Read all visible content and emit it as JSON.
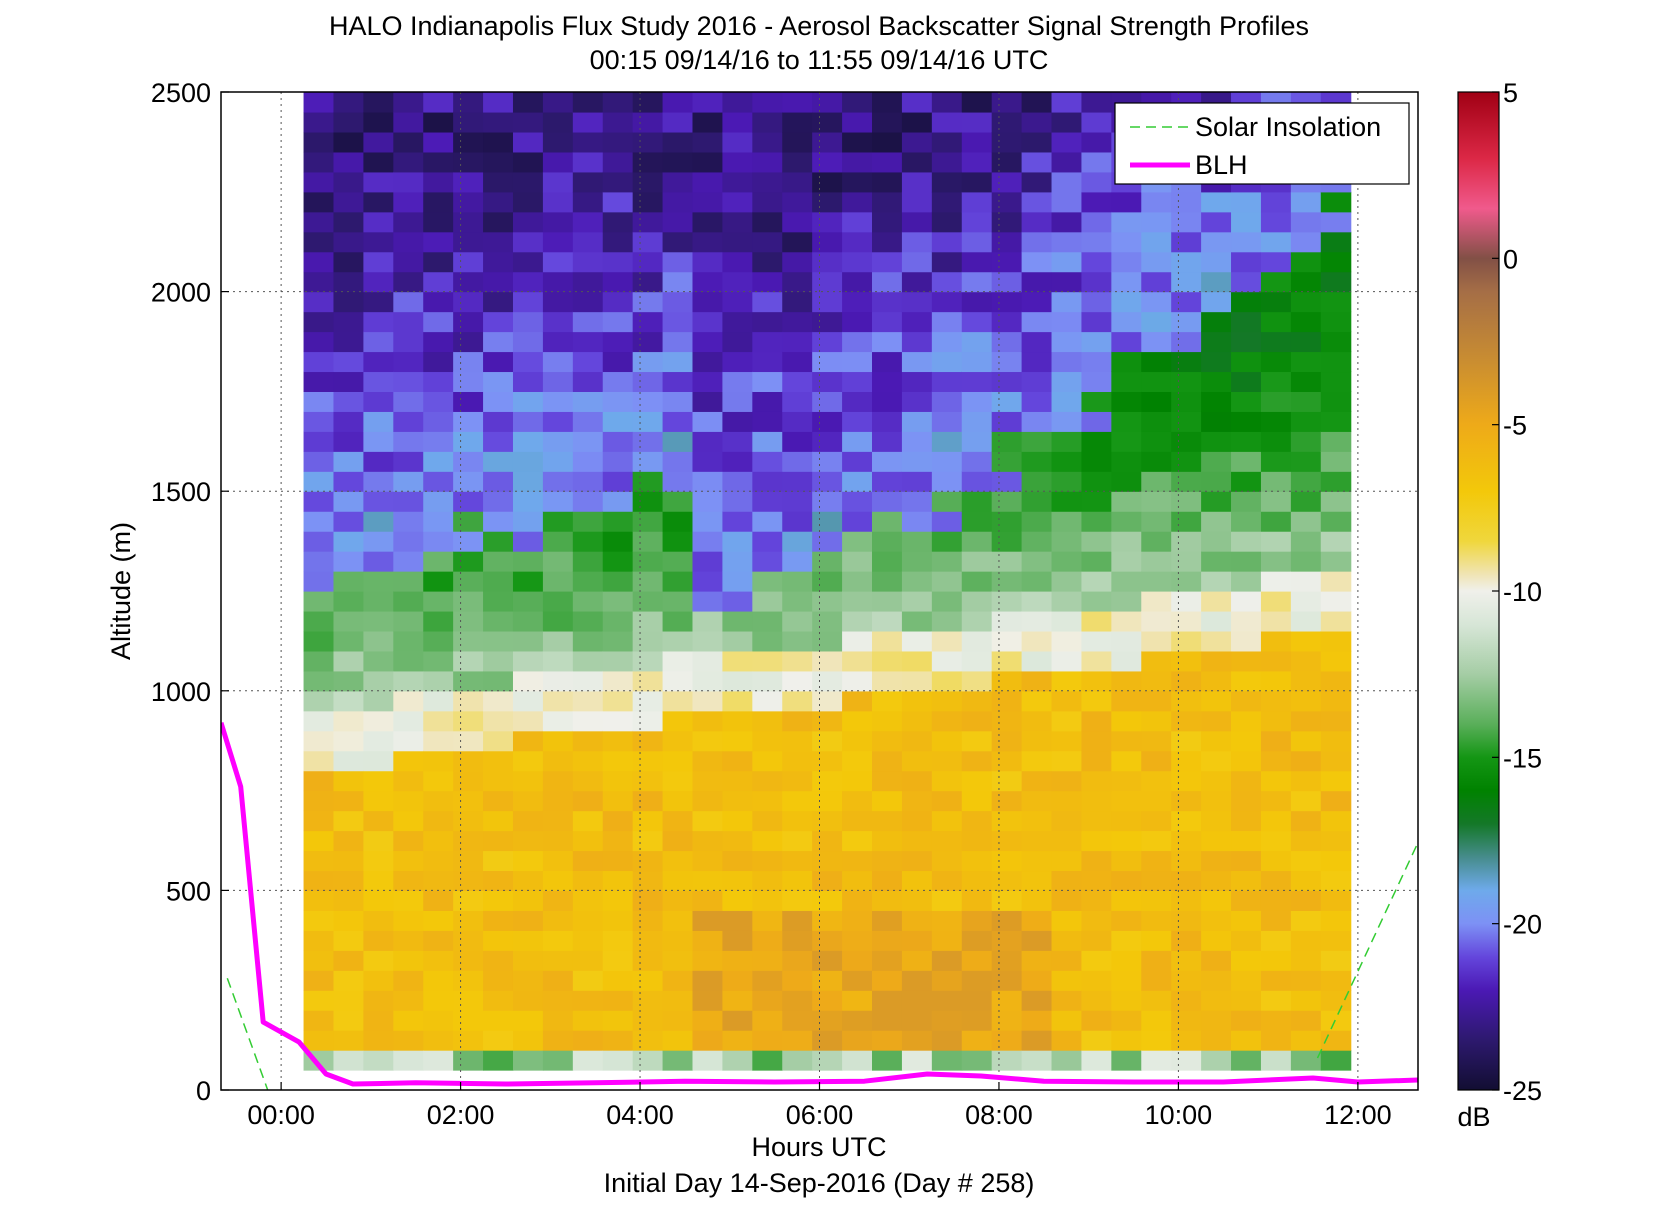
{
  "chart_data": {
    "type": "heatmap",
    "title_line1": "HALO Indianapolis Flux Study 2016 - Aerosol Backscatter Signal Strength Profiles",
    "title_line2": "00:15 09/14/16 to 11:55 09/14/16  UTC",
    "xlabel": "Hours UTC",
    "xlabel2": "Initial Day 14-Sep-2016 (Day # 258)",
    "ylabel": "Altitude (m)",
    "colorbar_label": "dB",
    "xlim": [
      -0.67,
      12.67
    ],
    "ylim": [
      0,
      2500
    ],
    "x_ticks": [
      {
        "value": 0,
        "label": "00:00"
      },
      {
        "value": 2,
        "label": "02:00"
      },
      {
        "value": 4,
        "label": "04:00"
      },
      {
        "value": 6,
        "label": "06:00"
      },
      {
        "value": 8,
        "label": "08:00"
      },
      {
        "value": 10,
        "label": "10:00"
      },
      {
        "value": 12,
        "label": "12:00"
      }
    ],
    "y_ticks": [
      {
        "value": 0,
        "label": "0"
      },
      {
        "value": 500,
        "label": "500"
      },
      {
        "value": 1000,
        "label": "1000"
      },
      {
        "value": 1500,
        "label": "1500"
      },
      {
        "value": 2000,
        "label": "2000"
      },
      {
        "value": 2500,
        "label": "2500"
      }
    ],
    "colorbar_range": [
      -25,
      5
    ],
    "colorbar_ticks": [
      {
        "value": 5,
        "label": "5"
      },
      {
        "value": 0,
        "label": "0"
      },
      {
        "value": -5,
        "label": "-5"
      },
      {
        "value": -10,
        "label": "-10"
      },
      {
        "value": -15,
        "label": "-15"
      },
      {
        "value": -20,
        "label": "-20"
      },
      {
        "value": -25,
        "label": "-25"
      }
    ],
    "grid": true,
    "legend_position": "top-right",
    "legend": [
      {
        "label": "Solar Insolation",
        "color": "#33cc33",
        "style": "dashed"
      },
      {
        "label": "BLH",
        "color": "#ff00ff",
        "style": "solid"
      }
    ],
    "heatmap": {
      "x_start": 0.25,
      "x_end": 11.92,
      "n_cols": 35,
      "y_start": 50,
      "y_end": 2500,
      "n_rows": 49
    },
    "blh": {
      "x": [
        -0.67,
        -0.45,
        -0.2,
        0.2,
        0.5,
        0.8,
        1.5,
        2.5,
        3.5,
        4.5,
        5.5,
        6.5,
        7.2,
        7.8,
        8.5,
        9.5,
        10.5,
        11.5,
        12.0,
        12.67
      ],
      "y": [
        920,
        760,
        170,
        120,
        40,
        15,
        18,
        15,
        18,
        22,
        20,
        22,
        40,
        35,
        22,
        20,
        20,
        30,
        20,
        25
      ]
    },
    "solar_insolation": {
      "segments": [
        {
          "x": [
            -0.6,
            -0.15
          ],
          "y": [
            280,
            0
          ]
        },
        {
          "x": [
            11.55,
            12.67
          ],
          "y": [
            80,
            620
          ]
        }
      ]
    }
  }
}
